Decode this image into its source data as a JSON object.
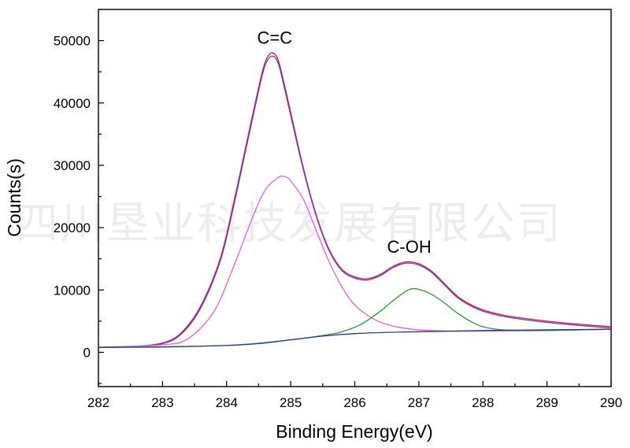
{
  "watermark": "四川垦业科技发展有限公司",
  "chart_data": {
    "type": "line",
    "title": "",
    "xlabel": "Binding Energy(eV)",
    "ylabel": "Counts(s)",
    "xlim": [
      282,
      290
    ],
    "ylim": [
      -5500,
      55000
    ],
    "x_ticks": [
      282,
      283,
      284,
      285,
      286,
      287,
      288,
      289,
      290
    ],
    "y_ticks": [
      0,
      10000,
      20000,
      30000,
      40000,
      50000
    ],
    "grid": false,
    "legend": "none",
    "annotations": [
      {
        "text": "C=C",
        "x": 284.75,
        "y": 49500
      },
      {
        "text": "C-OH",
        "x": 286.85,
        "y": 16000
      }
    ],
    "series": [
      {
        "color": "#e01050",
        "x": [
          282,
          282.5,
          283,
          283.3,
          283.6,
          283.9,
          284.1,
          284.3,
          284.5,
          284.6,
          284.7,
          284.8,
          284.9,
          285.0,
          285.2,
          285.4,
          285.6,
          285.8,
          286.0,
          286.2,
          286.4,
          286.6,
          286.8,
          287.0,
          287.2,
          287.4,
          287.6,
          287.8,
          288.0,
          288.3,
          288.6,
          289.0,
          289.5,
          290
        ],
        "y": [
          800,
          900,
          1500,
          3200,
          7500,
          15000,
          23500,
          33000,
          42500,
          46500,
          48000,
          47000,
          43000,
          38500,
          29500,
          22000,
          16500,
          13300,
          12100,
          11800,
          12500,
          13800,
          14500,
          14200,
          13000,
          11000,
          9000,
          7700,
          6800,
          6000,
          5500,
          5000,
          4500,
          4100
        ]
      },
      {
        "color": "#6a3fb0",
        "x": [
          282,
          282.5,
          283,
          283.3,
          283.6,
          283.9,
          284.1,
          284.3,
          284.5,
          284.6,
          284.7,
          284.8,
          284.9,
          285.0,
          285.2,
          285.4,
          285.6,
          285.8,
          286.0,
          286.2,
          286.4,
          286.6,
          286.8,
          287.0,
          287.2,
          287.4,
          287.6,
          287.8,
          288.0,
          288.3,
          288.6,
          289.0,
          289.5,
          290
        ],
        "y": [
          800,
          900,
          1400,
          3000,
          7200,
          14600,
          23000,
          32500,
          42000,
          46000,
          47500,
          46500,
          42500,
          38000,
          29200,
          21800,
          16300,
          13100,
          11900,
          11600,
          12300,
          13600,
          14300,
          14000,
          12800,
          10800,
          8800,
          7500,
          6600,
          5800,
          5300,
          4800,
          4300,
          3900
        ]
      },
      {
        "color": "#e060e0",
        "x": [
          282,
          283,
          283.4,
          283.8,
          284.1,
          284.4,
          284.6,
          284.8,
          284.9,
          285.0,
          285.2,
          285.4,
          285.6,
          285.8,
          286.0,
          286.3,
          286.6,
          287.0,
          287.5,
          288,
          289,
          290
        ],
        "y": [
          800,
          1200,
          2200,
          6500,
          13500,
          21500,
          26000,
          28000,
          28200,
          27500,
          24500,
          19500,
          14500,
          10500,
          7600,
          5300,
          4200,
          3600,
          3400,
          3400,
          3500,
          3700
        ]
      },
      {
        "color": "#2e9a2e",
        "x": [
          282,
          284,
          285,
          285.5,
          285.8,
          286.1,
          286.4,
          286.6,
          286.8,
          286.9,
          287.0,
          287.2,
          287.4,
          287.6,
          287.8,
          288.0,
          288.3,
          288.6,
          289,
          290
        ],
        "y": [
          800,
          1100,
          2000,
          2700,
          3300,
          4500,
          6600,
          8300,
          9800,
          10200,
          10100,
          9300,
          7900,
          6300,
          5000,
          4100,
          3600,
          3500,
          3500,
          3700
        ]
      },
      {
        "color": "#2a3a8a",
        "x": [
          282,
          283,
          284,
          284.5,
          285,
          285.5,
          286,
          286.5,
          287,
          287.5,
          288,
          288.5,
          289,
          289.5,
          290
        ],
        "y": [
          800,
          850,
          1100,
          1400,
          2000,
          2600,
          3000,
          3200,
          3300,
          3400,
          3500,
          3550,
          3600,
          3650,
          3700
        ]
      }
    ]
  }
}
